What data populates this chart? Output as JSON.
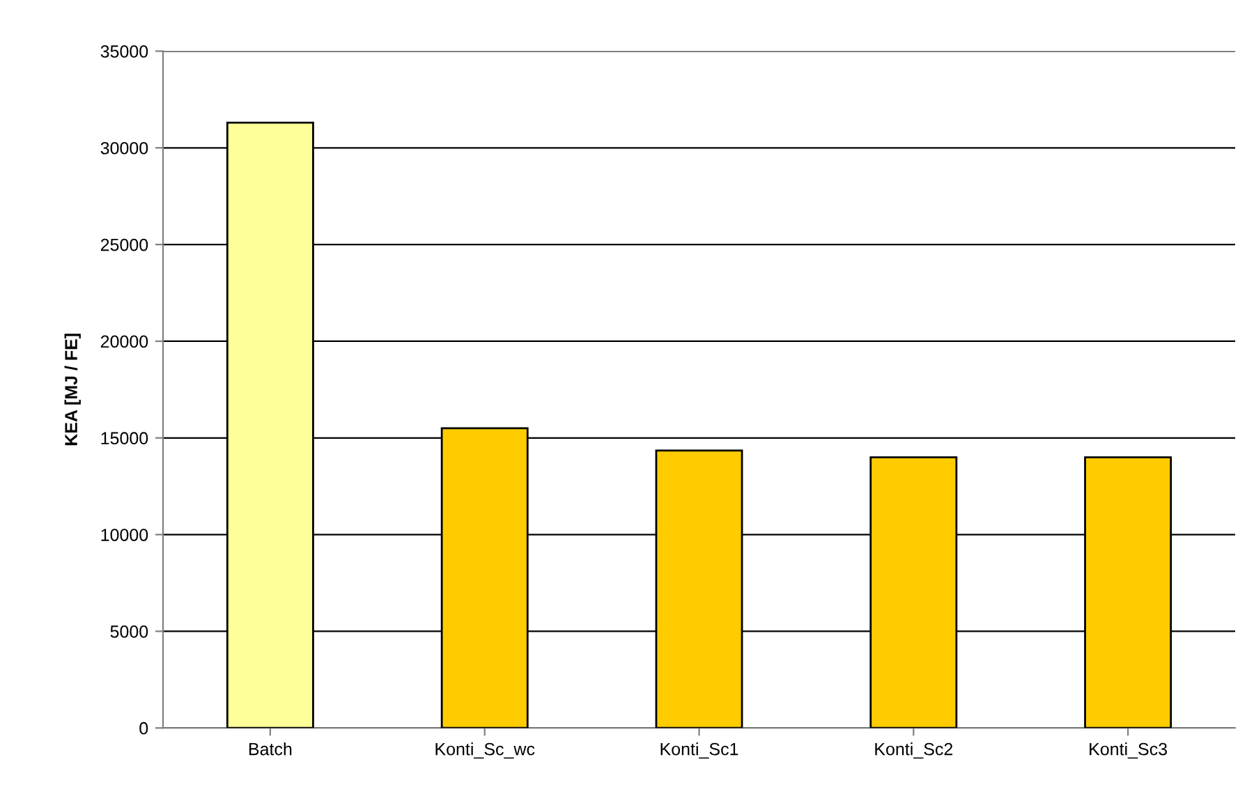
{
  "chart_data": {
    "type": "bar",
    "ylabel": "KEA [MJ / FE]",
    "categories": [
      "Batch",
      "Konti_Sc_wc",
      "Konti_Sc1",
      "Konti_Sc2",
      "Konti_Sc3"
    ],
    "values": [
      31300,
      15500,
      14350,
      14000,
      14000
    ],
    "colors": [
      "#ffff99",
      "#ffcc00",
      "#ffcc00",
      "#ffcc00",
      "#ffcc00"
    ],
    "ylim": [
      0,
      35000
    ],
    "yticks": [
      0,
      5000,
      10000,
      15000,
      20000,
      25000,
      30000,
      35000
    ],
    "grid": "y",
    "legend": false
  }
}
